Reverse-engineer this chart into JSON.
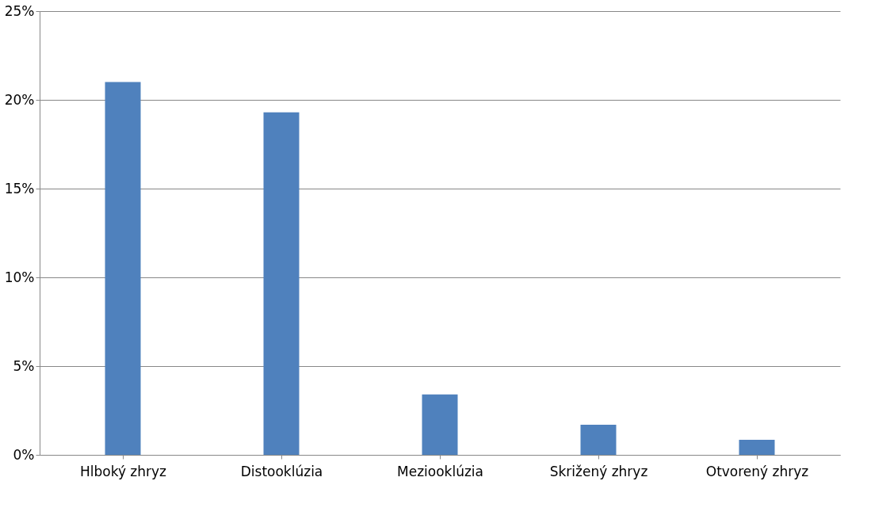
{
  "chart_data": {
    "type": "bar",
    "categories": [
      "Hlboký zhryz",
      "Distooklúzia",
      "Meziooklúzia",
      "Skrižený zhryz",
      "Otvorený zhryz"
    ],
    "values": [
      21,
      19.3,
      3.4,
      1.7,
      0.85
    ],
    "color": "#4f81bd",
    "ylim": [
      0,
      25
    ],
    "yticks": [
      {
        "value": 0,
        "label": "0%"
      },
      {
        "value": 5,
        "label": "5%"
      },
      {
        "value": 10,
        "label": "10%"
      },
      {
        "value": 15,
        "label": "15%"
      },
      {
        "value": 20,
        "label": "20%"
      },
      {
        "value": 25,
        "label": "25%"
      }
    ],
    "grid": "y"
  }
}
